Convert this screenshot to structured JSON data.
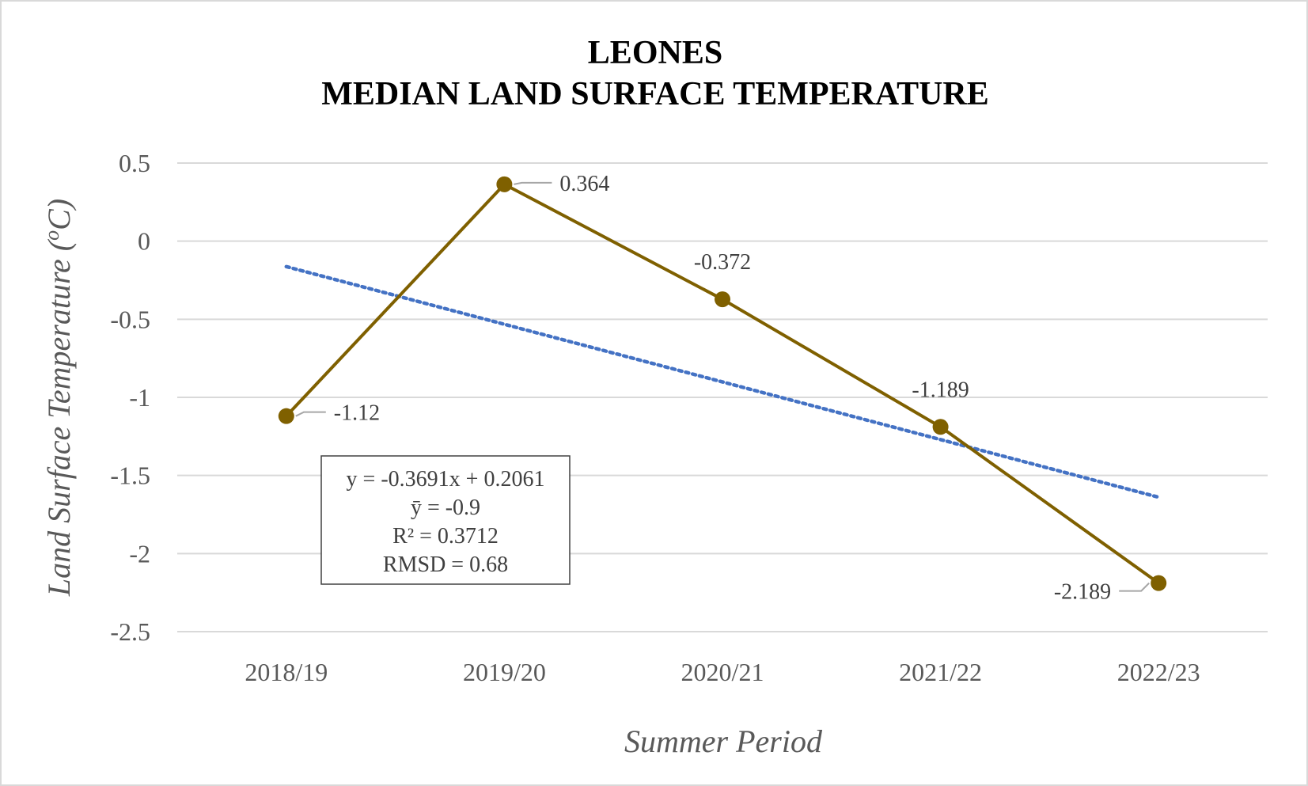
{
  "chart_data": {
    "type": "line",
    "title_lines": [
      "LEONES",
      "MEDIAN LAND SURFACE TEMPERATURE"
    ],
    "xlabel": "Summer Period",
    "ylabel_main": "Land Surface Temperature (",
    "ylabel_sup": "o",
    "ylabel_end": "C)",
    "categories": [
      "2018/19",
      "2019/20",
      "2020/21",
      "2021/22",
      "2022/23"
    ],
    "y_ticks": [
      "0.5",
      "0",
      "-0.5",
      "-1",
      "-1.5",
      "-2",
      "-2.5"
    ],
    "ylim": [
      -2.5,
      0.5
    ],
    "series": [
      {
        "values": [
          -1.12,
          0.364,
          -0.372,
          -1.189,
          -2.189
        ],
        "labels": [
          "-1.12",
          "0.364",
          "-0.372",
          "-1.189",
          "-2.189"
        ],
        "color": "#7f6000"
      }
    ],
    "trendline": {
      "slope": -0.3691,
      "intercept": 0.2061,
      "color": "#4472c4",
      "style": "dotted"
    },
    "stats_box": [
      "y = -0.3691x + 0.2061",
      "ȳ = -0.9",
      "R² = 0.3712",
      "RMSD = 0.68"
    ],
    "grid": true,
    "legend": "none"
  }
}
